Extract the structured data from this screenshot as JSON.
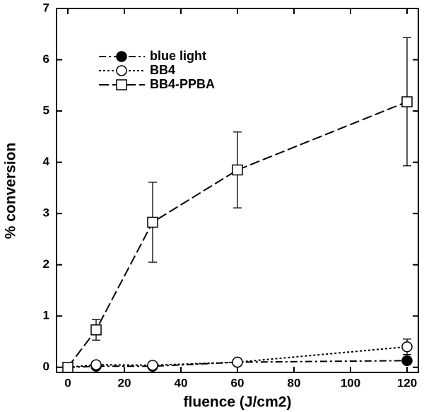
{
  "chart_data": {
    "type": "line",
    "x_label": "fluence (J/cm2)",
    "y_label": "% conversion",
    "x": [
      0,
      10,
      30,
      60,
      120
    ],
    "xlim": [
      -4,
      124
    ],
    "ylim": [
      -0.1,
      7
    ],
    "xticks": [
      0,
      20,
      40,
      60,
      80,
      100,
      120
    ],
    "yticks": [
      0,
      1,
      2,
      3,
      4,
      5,
      6,
      7
    ],
    "legend": "upper left",
    "series": [
      {
        "name": "blue light",
        "color": "#000000",
        "dash": "dash-dot",
        "marker": "filled-circle",
        "values": [
          0,
          0.02,
          0.02,
          0.1,
          0.13
        ]
      },
      {
        "name": "BB4",
        "color": "#000000",
        "dash": "dotted",
        "marker": "open-circle",
        "values": [
          0,
          0.05,
          0.04,
          0.1,
          0.4
        ],
        "errors": [
          null,
          null,
          null,
          null,
          0.15
        ]
      },
      {
        "name": "BB4-PPBA",
        "color": "#000000",
        "dash": "long-dash",
        "marker": "open-square",
        "values": [
          0,
          0.73,
          2.83,
          3.85,
          5.18
        ],
        "errors": [
          null,
          0.2,
          0.78,
          0.74,
          1.25
        ]
      }
    ]
  }
}
